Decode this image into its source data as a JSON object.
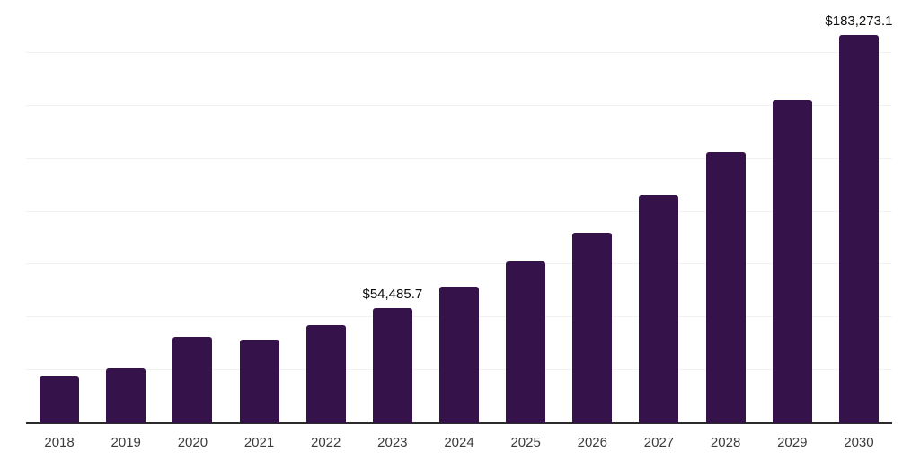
{
  "chart_data": {
    "type": "bar",
    "title": "",
    "xlabel": "",
    "ylabel": "",
    "categories": [
      "2018",
      "2019",
      "2020",
      "2021",
      "2022",
      "2023",
      "2024",
      "2025",
      "2026",
      "2027",
      "2028",
      "2029",
      "2030"
    ],
    "values": [
      22000,
      25900,
      40800,
      39400,
      46200,
      54485.7,
      64500,
      76400,
      90000,
      108000,
      128200,
      152900,
      183273.1
    ],
    "data_labels": [
      {
        "category": "2023",
        "text": "$54,485.7"
      },
      {
        "category": "2030",
        "text": "$183,273.1"
      }
    ],
    "ylim": [
      0,
      200000
    ],
    "gridline_interval": 25000,
    "grid": true,
    "legend": false,
    "y_axis_tick_labels_visible": false,
    "colors": {
      "bar": "#351249",
      "gridline": "#f2f2f2",
      "axis_line": "#2b2b2b",
      "data_label": "#0d0d0d",
      "tick_label": "#3c3c3c",
      "background": "#ffffff"
    }
  }
}
